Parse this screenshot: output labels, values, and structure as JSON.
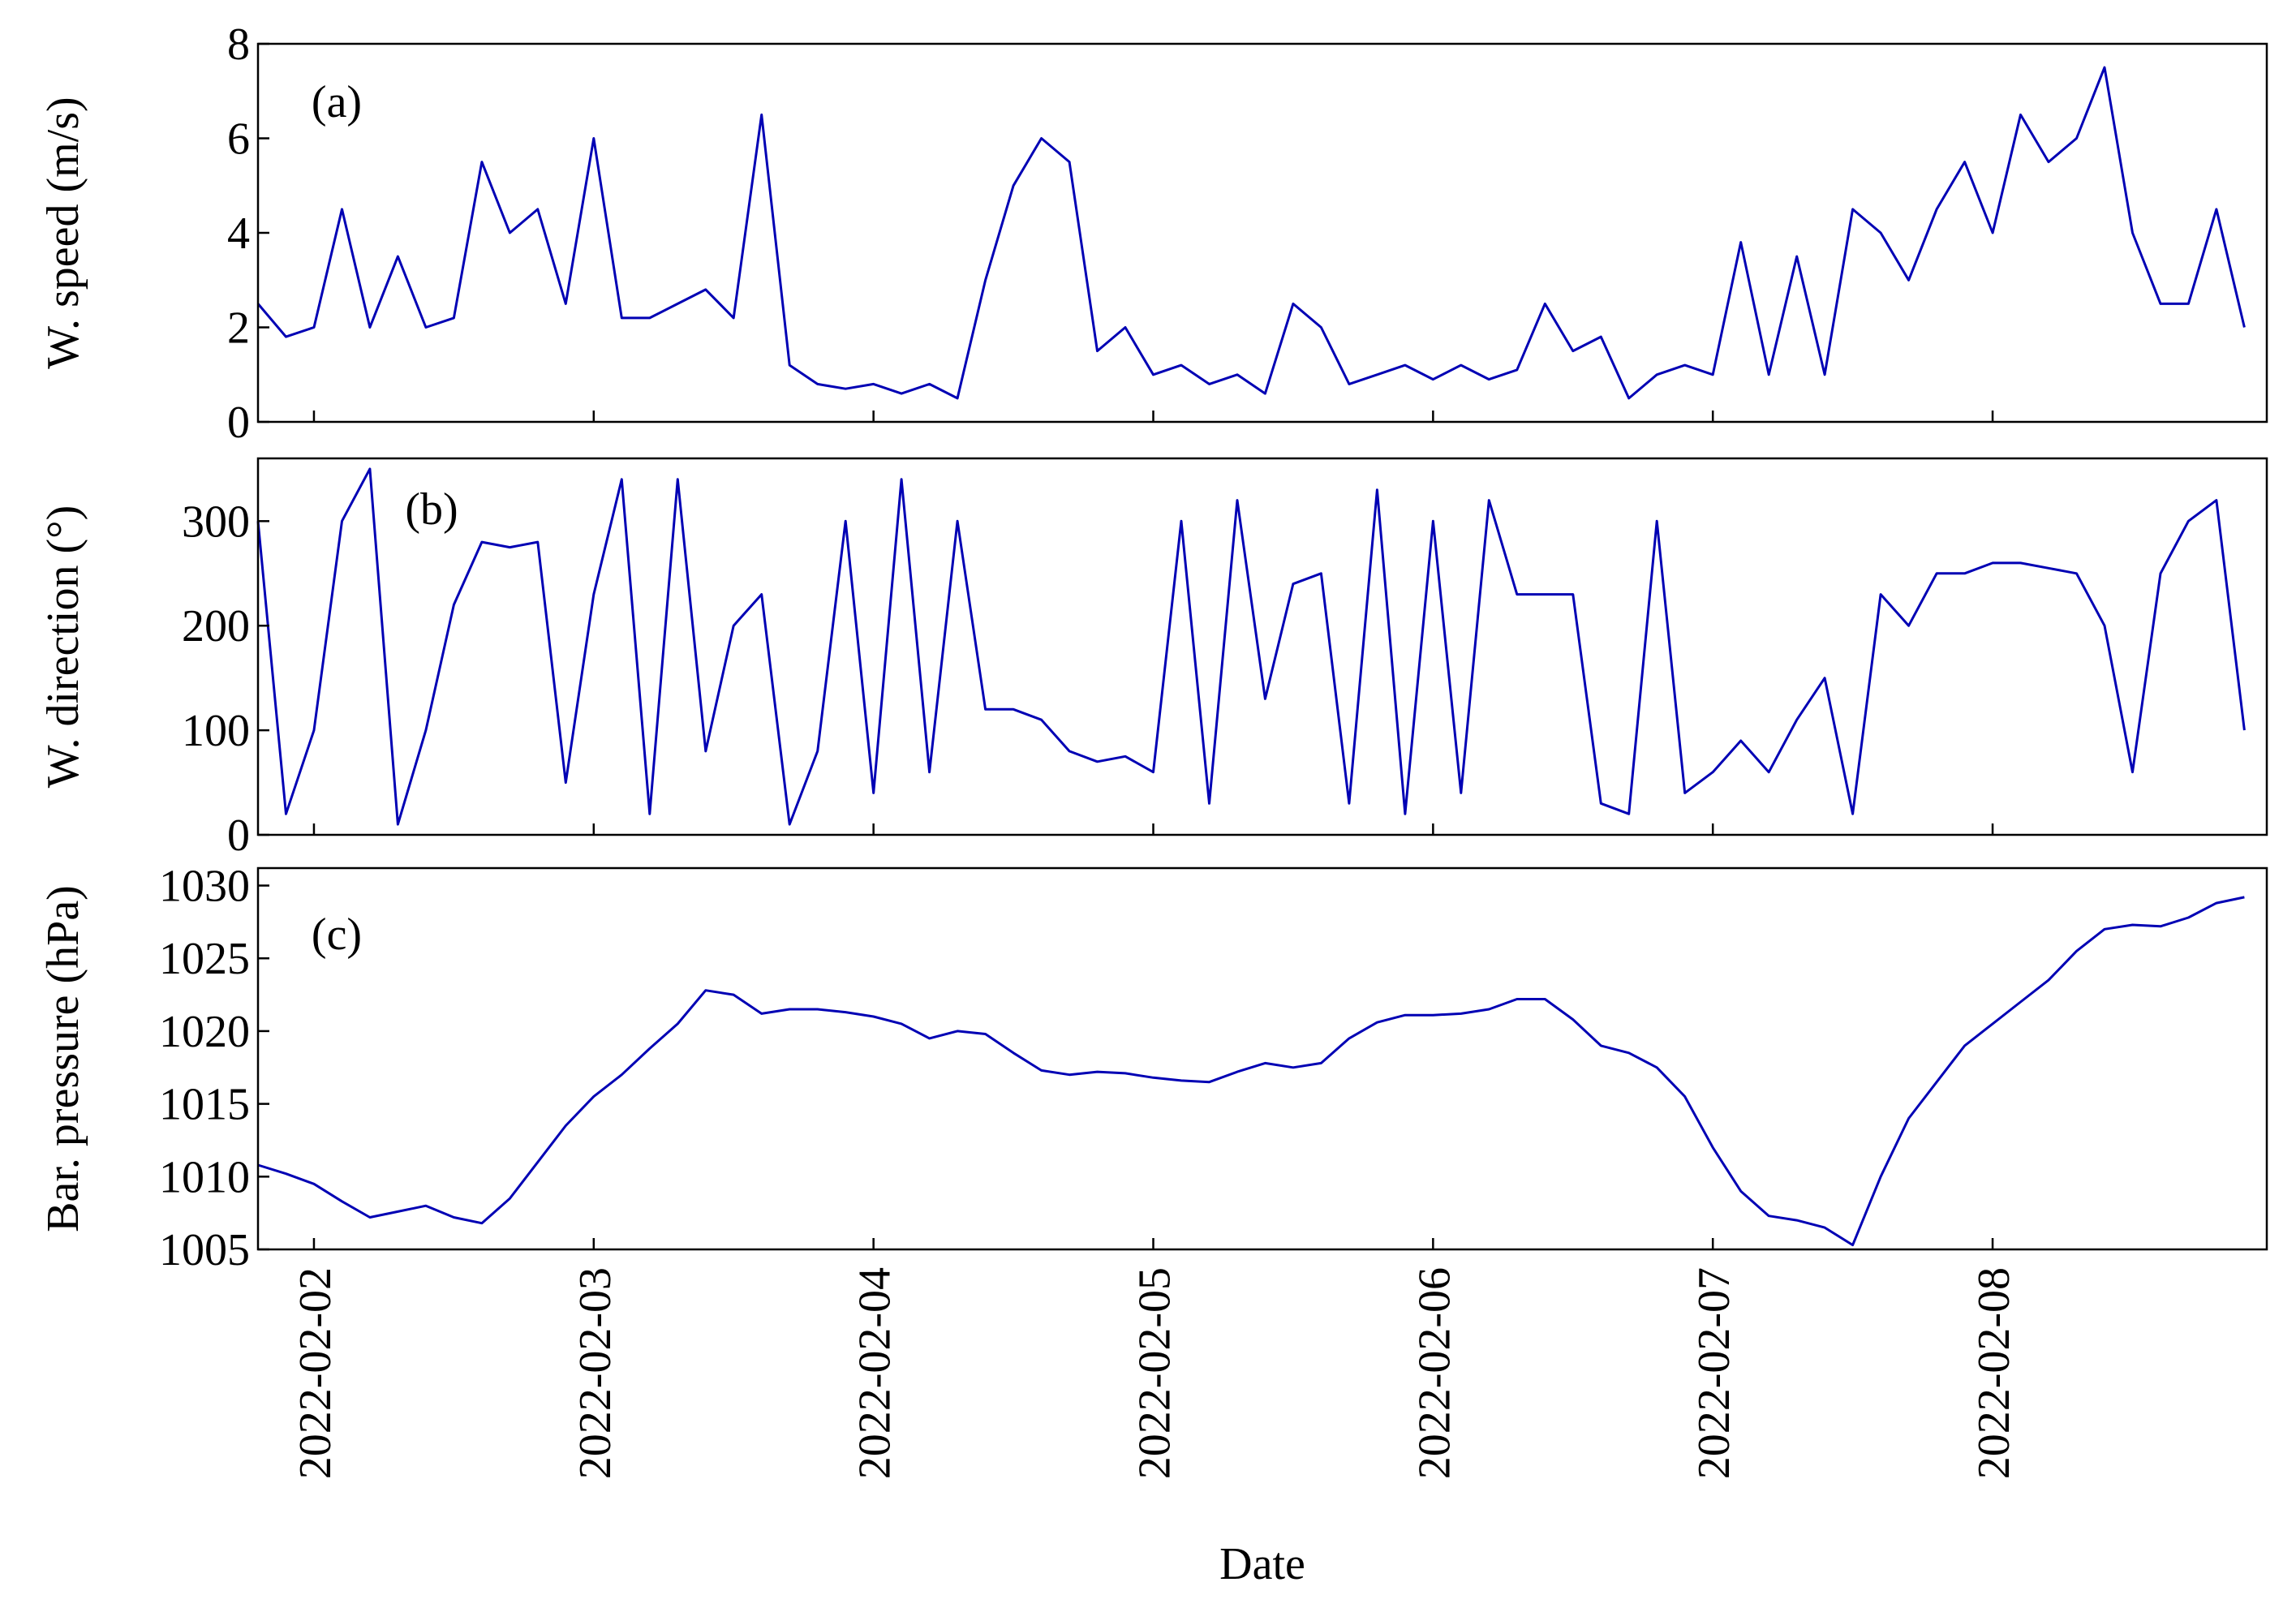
{
  "chart_data": [
    {
      "type": "line",
      "ylabel": "W. speed (m/s)",
      "annotation": "(a)",
      "color": "#0000b4",
      "xlim": [
        1.8,
        8.98
      ],
      "xticks": [
        2,
        3,
        4,
        5,
        6,
        7,
        8
      ],
      "ylim": [
        0,
        8
      ],
      "yticks": [
        0,
        2,
        4,
        6,
        8
      ],
      "x": [
        1.8,
        1.9,
        2.0,
        2.1,
        2.2,
        2.3,
        2.4,
        2.5,
        2.6,
        2.7,
        2.8,
        2.9,
        3.0,
        3.1,
        3.2,
        3.3,
        3.4,
        3.5,
        3.6,
        3.7,
        3.8,
        3.9,
        4.0,
        4.1,
        4.2,
        4.3,
        4.4,
        4.5,
        4.6,
        4.7,
        4.8,
        4.9,
        5.0,
        5.1,
        5.2,
        5.3,
        5.4,
        5.5,
        5.6,
        5.7,
        5.8,
        5.9,
        6.0,
        6.1,
        6.2,
        6.3,
        6.4,
        6.5,
        6.6,
        6.7,
        6.8,
        6.9,
        7.0,
        7.1,
        7.2,
        7.3,
        7.4,
        7.5,
        7.6,
        7.7,
        7.8,
        7.9,
        8.0,
        8.1,
        8.2,
        8.3,
        8.4,
        8.5,
        8.6,
        8.7,
        8.8,
        8.9
      ],
      "values": [
        2.5,
        1.8,
        2.0,
        4.5,
        2.0,
        3.5,
        2.0,
        2.2,
        5.5,
        4.0,
        4.5,
        2.5,
        6.0,
        2.2,
        2.2,
        2.5,
        2.8,
        2.2,
        6.5,
        1.2,
        0.8,
        0.7,
        0.8,
        0.6,
        0.8,
        0.5,
        3.0,
        5.0,
        6.0,
        5.5,
        1.5,
        2.0,
        1.0,
        1.2,
        0.8,
        1.0,
        0.6,
        2.5,
        2.0,
        0.8,
        1.0,
        1.2,
        0.9,
        1.2,
        0.9,
        1.1,
        2.5,
        1.5,
        1.8,
        0.5,
        1.0,
        1.2,
        1.0,
        3.8,
        1.0,
        3.5,
        1.0,
        4.5,
        4.0,
        3.0,
        4.5,
        5.5,
        4.0,
        6.5,
        5.5,
        6.0,
        7.5,
        4.0,
        2.5,
        2.5,
        4.5,
        2.0
      ]
    },
    {
      "type": "line",
      "ylabel": "W. direction (°)",
      "annotation": "(b)",
      "color": "#0000b4",
      "xlim": [
        1.8,
        8.98
      ],
      "xticks": [
        2,
        3,
        4,
        5,
        6,
        7,
        8
      ],
      "ylim": [
        0,
        360
      ],
      "yticks": [
        0,
        100,
        200,
        300
      ],
      "x": [
        1.8,
        1.9,
        2.0,
        2.1,
        2.2,
        2.3,
        2.4,
        2.5,
        2.6,
        2.7,
        2.8,
        2.9,
        3.0,
        3.1,
        3.2,
        3.3,
        3.4,
        3.5,
        3.6,
        3.7,
        3.8,
        3.9,
        4.0,
        4.1,
        4.2,
        4.3,
        4.4,
        4.5,
        4.6,
        4.7,
        4.8,
        4.9,
        5.0,
        5.1,
        5.2,
        5.3,
        5.4,
        5.5,
        5.6,
        5.7,
        5.8,
        5.9,
        6.0,
        6.1,
        6.2,
        6.3,
        6.4,
        6.5,
        6.6,
        6.7,
        6.8,
        6.9,
        7.0,
        7.1,
        7.2,
        7.3,
        7.4,
        7.5,
        7.6,
        7.7,
        7.8,
        7.9,
        8.0,
        8.1,
        8.2,
        8.3,
        8.4,
        8.5,
        8.6,
        8.7,
        8.8,
        8.9
      ],
      "values": [
        300,
        20,
        100,
        300,
        350,
        10,
        100,
        220,
        280,
        275,
        280,
        50,
        230,
        340,
        20,
        340,
        80,
        200,
        230,
        10,
        80,
        300,
        40,
        340,
        60,
        300,
        120,
        120,
        110,
        80,
        70,
        75,
        60,
        300,
        30,
        320,
        130,
        240,
        250,
        30,
        330,
        20,
        300,
        40,
        320,
        230,
        230,
        230,
        30,
        20,
        300,
        40,
        60,
        90,
        60,
        110,
        150,
        20,
        230,
        200,
        250,
        250,
        260,
        260,
        255,
        250,
        200,
        60,
        250,
        300,
        320,
        100
      ]
    },
    {
      "type": "line",
      "ylabel": "Bar. pressure (hPa)",
      "annotation": "(c)",
      "color": "#0000b4",
      "xlabel": "Date",
      "xlim": [
        1.8,
        8.98
      ],
      "xticks": [
        {
          "value": 2,
          "label": "2022-02-02"
        },
        {
          "value": 3,
          "label": "2022-02-03"
        },
        {
          "value": 4,
          "label": "2022-02-04"
        },
        {
          "value": 5,
          "label": "2022-02-05"
        },
        {
          "value": 6,
          "label": "2022-02-06"
        },
        {
          "value": 7,
          "label": "2022-02-07"
        },
        {
          "value": 8,
          "label": "2022-02-08"
        }
      ],
      "ylim": [
        1005,
        1031.2
      ],
      "yticks": [
        1005,
        1010,
        1015,
        1020,
        1025,
        1030
      ],
      "x": [
        1.8,
        1.9,
        2.0,
        2.1,
        2.2,
        2.3,
        2.4,
        2.5,
        2.6,
        2.7,
        2.8,
        2.9,
        3.0,
        3.1,
        3.2,
        3.3,
        3.4,
        3.5,
        3.6,
        3.7,
        3.8,
        3.9,
        4.0,
        4.1,
        4.2,
        4.3,
        4.4,
        4.5,
        4.6,
        4.7,
        4.8,
        4.9,
        5.0,
        5.1,
        5.2,
        5.3,
        5.4,
        5.5,
        5.6,
        5.7,
        5.8,
        5.9,
        6.0,
        6.1,
        6.2,
        6.3,
        6.4,
        6.5,
        6.6,
        6.7,
        6.8,
        6.9,
        7.0,
        7.1,
        7.2,
        7.3,
        7.4,
        7.5,
        7.6,
        7.7,
        7.8,
        7.9,
        8.0,
        8.1,
        8.2,
        8.3,
        8.4,
        8.5,
        8.6,
        8.7,
        8.8,
        8.9
      ],
      "values": [
        1010.8,
        1010.2,
        1009.5,
        1008.3,
        1007.2,
        1007.6,
        1008.0,
        1007.2,
        1006.8,
        1008.5,
        1011,
        1013.5,
        1015.5,
        1017.0,
        1018.8,
        1020.5,
        1022.8,
        1022.5,
        1021.2,
        1021.5,
        1021.5,
        1021.3,
        1021.0,
        1020.5,
        1019.5,
        1020.0,
        1019.8,
        1018.5,
        1017.3,
        1017.0,
        1017.2,
        1017.1,
        1016.8,
        1016.6,
        1016.5,
        1017.2,
        1017.8,
        1017.5,
        1017.8,
        1019.5,
        1020.6,
        1021.1,
        1021.1,
        1021.2,
        1021.5,
        1022.2,
        1022.2,
        1020.8,
        1019.0,
        1018.5,
        1017.5,
        1015.5,
        1012.0,
        1009.0,
        1007.3,
        1007.0,
        1006.5,
        1005.3,
        1010.0,
        1014.0,
        1016.5,
        1019.0,
        1020.5,
        1022.0,
        1023.5,
        1025.5,
        1027.0,
        1027.3,
        1027.2,
        1027.8,
        1028.8,
        1029.2
      ]
    }
  ]
}
